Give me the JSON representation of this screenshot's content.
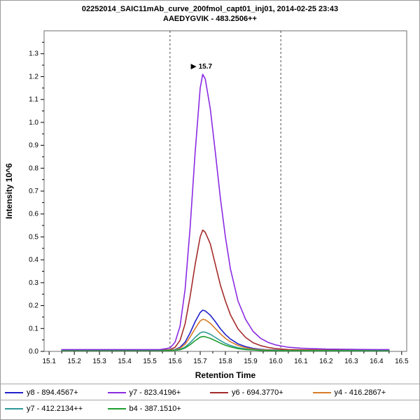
{
  "title": {
    "line1": "02252014_SAIC11mAb_curve_200fmol_capt01_inj01, 2014-02-25 23:43",
    "line2": "AAEDYGVIK - 483.2506++"
  },
  "chart_data": {
    "type": "line",
    "title": "02252014_SAIC11mAb_curve_200fmol_capt01_inj01, 2014-02-25 23:43",
    "subtitle": "AAEDYGVIK - 483.2506++",
    "xlabel": "Retention Time",
    "ylabel": "Intensity 10^6",
    "xlim": [
      15.08,
      16.52
    ],
    "ylim": [
      0,
      1.4
    ],
    "xticks": [
      15.1,
      15.2,
      15.3,
      15.4,
      15.5,
      15.6,
      15.7,
      15.8,
      15.9,
      16.0,
      16.1,
      16.2,
      16.3,
      16.4,
      16.5
    ],
    "yticks": [
      0.0,
      0.1,
      0.2,
      0.3,
      0.4,
      0.5,
      0.6,
      0.7,
      0.8,
      0.9,
      1.0,
      1.1,
      1.2,
      1.3
    ],
    "grid": false,
    "legend_position": "bottom",
    "integration_boundaries": [
      15.58,
      16.02
    ],
    "peak_annotation": {
      "text": "15.7",
      "x": 15.71,
      "y": 1.21,
      "color": "#8a2be2"
    },
    "x": [
      15.15,
      15.2,
      15.25,
      15.3,
      15.35,
      15.4,
      15.45,
      15.5,
      15.54,
      15.58,
      15.6,
      15.62,
      15.64,
      15.66,
      15.68,
      15.7,
      15.71,
      15.72,
      15.74,
      15.76,
      15.78,
      15.8,
      15.82,
      15.85,
      15.88,
      15.91,
      15.94,
      15.97,
      16.0,
      16.05,
      16.1,
      16.2,
      16.3,
      16.4,
      16.45
    ],
    "series": [
      {
        "name": "y8 - 894.4567+",
        "color": "#2121cc",
        "values": [
          0.005,
          0.005,
          0.005,
          0.005,
          0.005,
          0.005,
          0.005,
          0.005,
          0.005,
          0.006,
          0.008,
          0.018,
          0.04,
          0.081,
          0.13,
          0.17,
          0.18,
          0.177,
          0.158,
          0.13,
          0.099,
          0.074,
          0.054,
          0.033,
          0.021,
          0.013,
          0.009,
          0.007,
          0.006,
          0.005,
          0.005,
          0.004,
          0.004,
          0.004,
          0.004
        ]
      },
      {
        "name": "y7 - 823.4196+",
        "color": "#8a2be2",
        "values": [
          0.008,
          0.008,
          0.008,
          0.008,
          0.008,
          0.008,
          0.008,
          0.008,
          0.008,
          0.015,
          0.04,
          0.11,
          0.27,
          0.54,
          0.87,
          1.15,
          1.21,
          1.19,
          1.06,
          0.87,
          0.67,
          0.5,
          0.36,
          0.22,
          0.14,
          0.087,
          0.057,
          0.039,
          0.028,
          0.018,
          0.014,
          0.01,
          0.009,
          0.008,
          0.008
        ]
      },
      {
        "name": "y6 - 694.3770+",
        "color": "#a52a2a",
        "values": [
          0.006,
          0.006,
          0.006,
          0.006,
          0.006,
          0.006,
          0.006,
          0.006,
          0.006,
          0.008,
          0.018,
          0.048,
          0.12,
          0.24,
          0.38,
          0.5,
          0.53,
          0.52,
          0.47,
          0.38,
          0.29,
          0.22,
          0.16,
          0.098,
          0.061,
          0.038,
          0.025,
          0.017,
          0.012,
          0.008,
          0.007,
          0.006,
          0.005,
          0.005,
          0.005
        ]
      },
      {
        "name": "y4 - 416.2867+",
        "color": "#d87b28",
        "values": [
          0.005,
          0.005,
          0.005,
          0.005,
          0.005,
          0.005,
          0.005,
          0.005,
          0.005,
          0.006,
          0.007,
          0.014,
          0.031,
          0.063,
          0.1,
          0.133,
          0.14,
          0.138,
          0.123,
          0.1,
          0.077,
          0.057,
          0.042,
          0.026,
          0.016,
          0.01,
          0.007,
          0.006,
          0.005,
          0.004,
          0.004,
          0.004,
          0.004,
          0.004,
          0.004
        ]
      },
      {
        "name": "y7 - 412.2134++",
        "color": "#2e9999",
        "values": [
          0.004,
          0.004,
          0.004,
          0.004,
          0.004,
          0.004,
          0.004,
          0.004,
          0.004,
          0.005,
          0.006,
          0.009,
          0.019,
          0.038,
          0.061,
          0.081,
          0.085,
          0.084,
          0.075,
          0.061,
          0.047,
          0.035,
          0.026,
          0.016,
          0.01,
          0.007,
          0.005,
          0.004,
          0.004,
          0.003,
          0.003,
          0.003,
          0.003,
          0.003,
          0.003
        ]
      },
      {
        "name": "b4 - 387.1510+",
        "color": "#1e9e32",
        "values": [
          0.004,
          0.004,
          0.004,
          0.004,
          0.004,
          0.004,
          0.004,
          0.004,
          0.004,
          0.004,
          0.005,
          0.007,
          0.015,
          0.029,
          0.047,
          0.062,
          0.065,
          0.064,
          0.057,
          0.047,
          0.036,
          0.027,
          0.02,
          0.012,
          0.008,
          0.006,
          0.004,
          0.004,
          0.003,
          0.003,
          0.003,
          0.003,
          0.003,
          0.003,
          0.003
        ]
      }
    ]
  }
}
